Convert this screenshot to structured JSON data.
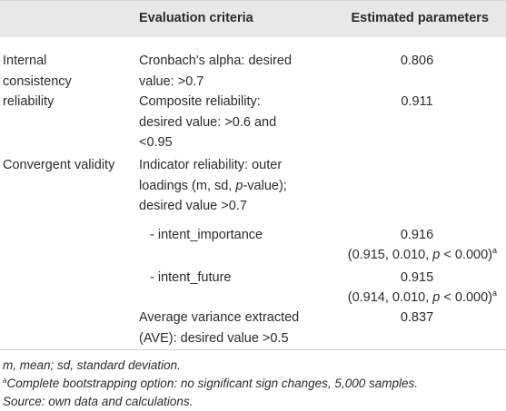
{
  "header": {
    "col_criteria": "Evaluation criteria",
    "col_params": "Estimated parameters"
  },
  "groups": {
    "internal": [
      "Internal",
      "consistency",
      "reliability"
    ],
    "convergent": "Convergent validity"
  },
  "rows": {
    "cronbach": {
      "lines": [
        "Cronbach's alpha: desired",
        "value: >0.7"
      ],
      "value": "0.806"
    },
    "composite": {
      "lines": [
        "Composite reliability:",
        "desired value: >0.6 and",
        "<0.95"
      ],
      "value": "0.911"
    },
    "indicator": {
      "lines": [
        "Indicator reliability: outer",
        "loadings (m, sd, ",
        "-value);",
        "desired value >0.7"
      ],
      "p": "p"
    },
    "importance": {
      "label": "-  intent_importance",
      "value": "0.916",
      "detail_pre": "(0.915, 0.010, ",
      "detail_p": "p",
      "detail_post": " < 0.000)",
      "sup": "a"
    },
    "future": {
      "label": "-  intent_future",
      "value": "0.915",
      "detail_pre": "(0.914, 0.010, ",
      "detail_p": "p",
      "detail_post": " < 0.000)",
      "sup": "a"
    },
    "ave": {
      "lines": [
        "Average variance extracted",
        "(AVE): desired value >0.5"
      ],
      "value": "0.837"
    }
  },
  "footnotes": {
    "abbrev": "m, mean; sd, standard deviation.",
    "sup": "a",
    "bootstrap": "Complete bootstrapping option: no significant sign changes, 5,000 samples.",
    "source": "Source: own data and calculations."
  }
}
